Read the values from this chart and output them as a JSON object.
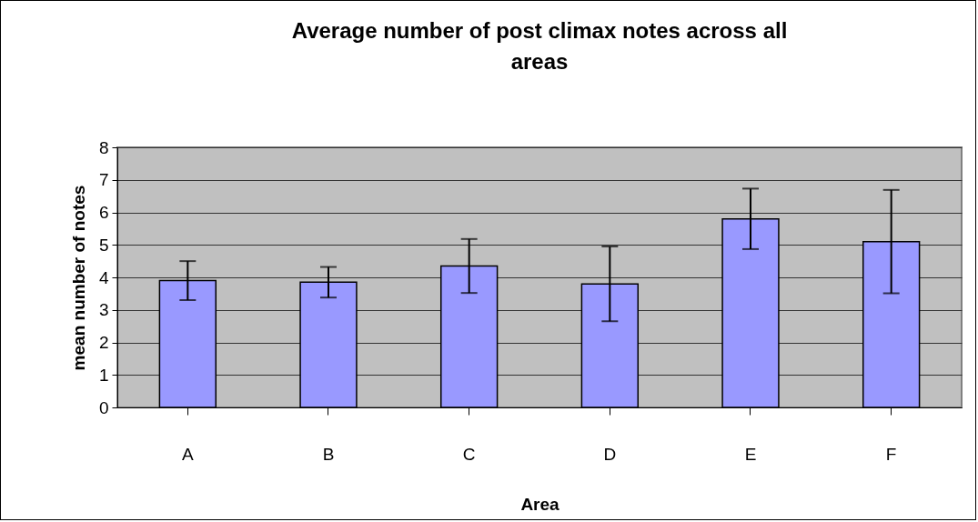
{
  "chart_data": {
    "type": "bar",
    "title": "Average number of post climax notes across all areas",
    "xlabel": "Area",
    "ylabel": "mean number of notes",
    "categories": [
      "A",
      "B",
      "C",
      "D",
      "E",
      "F"
    ],
    "values": [
      3.9,
      3.85,
      4.35,
      3.8,
      5.8,
      5.1
    ],
    "errors": [
      0.6,
      0.47,
      0.83,
      1.15,
      0.93,
      1.59
    ],
    "color": "#9999ff",
    "ylim": [
      0,
      8
    ],
    "yticks": [
      0,
      1,
      2,
      3,
      4,
      5,
      6,
      7,
      8
    ],
    "grid": "y"
  }
}
